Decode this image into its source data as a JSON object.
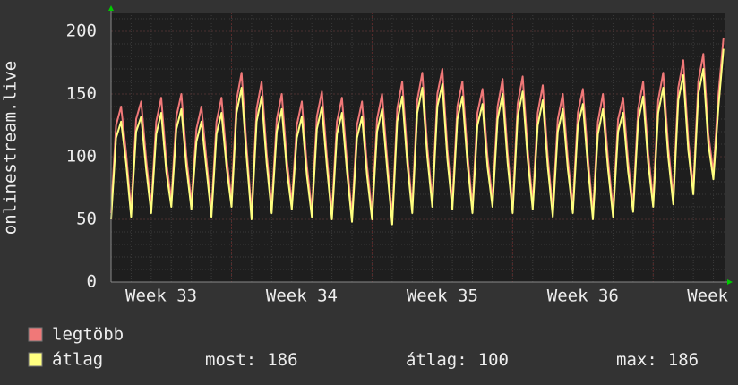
{
  "chart_data": {
    "type": "line",
    "y_label": "onlinestream.live",
    "x": [
      0,
      0.25,
      0.5,
      0.75,
      1,
      1.25,
      1.5,
      1.75,
      2,
      2.25,
      2.5,
      2.75,
      3,
      3.25,
      3.5,
      3.75,
      4,
      4.25,
      4.5,
      4.75,
      5,
      5.25,
      5.5,
      5.75,
      6,
      6.25,
      6.5,
      6.75,
      7,
      7.25,
      7.5,
      7.75,
      8,
      8.25,
      8.5,
      8.75,
      9,
      9.25,
      9.5,
      9.75,
      10,
      10.25,
      10.5,
      10.75,
      11,
      11.25,
      11.5,
      11.75,
      12,
      12.25,
      12.5,
      12.75,
      13,
      13.25,
      13.5,
      13.75,
      14,
      14.25,
      14.5,
      14.75,
      15,
      15.25,
      15.5,
      15.75,
      16,
      16.25,
      16.5,
      16.75,
      17,
      17.25,
      17.5,
      17.75,
      18,
      18.25,
      18.5,
      18.75,
      19,
      19.25,
      19.5,
      19.75,
      20,
      20.25,
      20.5,
      20.75,
      21,
      21.25,
      21.5,
      21.75,
      22,
      22.25,
      22.5,
      22.75,
      23,
      23.25,
      23.5,
      23.75,
      24,
      24.25,
      24.5,
      24.75,
      25,
      25.25,
      25.5,
      25.75,
      26,
      26.25,
      26.5,
      26.75,
      27,
      27.25,
      27.5,
      27.75,
      28,
      28.25,
      28.5,
      28.75,
      29,
      29.25,
      29.5,
      29.75,
      30,
      30.25,
      30.5
    ],
    "series": [
      {
        "name": "legtöbb",
        "color": "#f07878",
        "values": [
          55,
          125,
          140,
          103,
          57,
          130,
          144,
          98,
          60,
          128,
          147,
          96,
          65,
          132,
          150,
          100,
          63,
          122,
          140,
          98,
          57,
          128,
          147,
          100,
          65,
          145,
          167,
          108,
          55,
          138,
          160,
          103,
          60,
          130,
          150,
          98,
          63,
          125,
          144,
          93,
          57,
          132,
          152,
          100,
          55,
          128,
          147,
          96,
          53,
          125,
          144,
          93,
          55,
          130,
          150,
          98,
          51,
          138,
          160,
          103,
          60,
          145,
          167,
          108,
          65,
          150,
          170,
          106,
          63,
          140,
          160,
          103,
          60,
          135,
          154,
          100,
          65,
          140,
          162,
          103,
          60,
          142,
          164,
          106,
          63,
          135,
          157,
          100,
          57,
          130,
          150,
          98,
          60,
          135,
          154,
          100,
          55,
          128,
          150,
          98,
          57,
          130,
          147,
          96,
          61,
          138,
          160,
          103,
          65,
          145,
          167,
          108,
          67,
          155,
          177,
          113,
          75,
          160,
          182,
          118,
          87,
          150,
          195
        ]
      },
      {
        "name": "átlag",
        "color": "#ffff80",
        "values": [
          50,
          115,
          128,
          95,
          52,
          120,
          132,
          90,
          55,
          118,
          135,
          88,
          60,
          122,
          138,
          92,
          58,
          112,
          128,
          90,
          52,
          118,
          135,
          92,
          60,
          135,
          155,
          100,
          50,
          128,
          148,
          95,
          55,
          120,
          138,
          90,
          58,
          115,
          132,
          85,
          52,
          122,
          140,
          92,
          50,
          118,
          135,
          88,
          48,
          115,
          132,
          85,
          50,
          120,
          138,
          90,
          46,
          128,
          148,
          95,
          55,
          135,
          155,
          100,
          60,
          140,
          158,
          98,
          58,
          130,
          148,
          95,
          55,
          125,
          142,
          92,
          60,
          130,
          150,
          95,
          55,
          132,
          152,
          98,
          58,
          125,
          145,
          92,
          52,
          120,
          138,
          90,
          55,
          125,
          142,
          92,
          50,
          118,
          138,
          90,
          52,
          120,
          135,
          88,
          56,
          128,
          148,
          95,
          60,
          135,
          155,
          100,
          62,
          145,
          165,
          105,
          70,
          150,
          170,
          110,
          82,
          140,
          186
        ]
      }
    ],
    "xlim": [
      0,
      30.6
    ],
    "xticks": [
      {
        "value": 2.5,
        "label": "Week 33"
      },
      {
        "value": 9.5,
        "label": "Week 34"
      },
      {
        "value": 16.5,
        "label": "Week 35"
      },
      {
        "value": 23.5,
        "label": "Week 36"
      },
      {
        "value": 30.5,
        "label": "Week"
      }
    ],
    "week_starts": [
      6,
      13,
      20,
      27
    ],
    "ylim": [
      0,
      215
    ],
    "yticks": [
      0,
      50,
      100,
      150,
      200
    ],
    "grid": true,
    "summary": [
      {
        "label": "most:",
        "value": 186
      },
      {
        "label": "átlag:",
        "value": 100
      },
      {
        "label": "max:",
        "value": 186
      }
    ]
  }
}
